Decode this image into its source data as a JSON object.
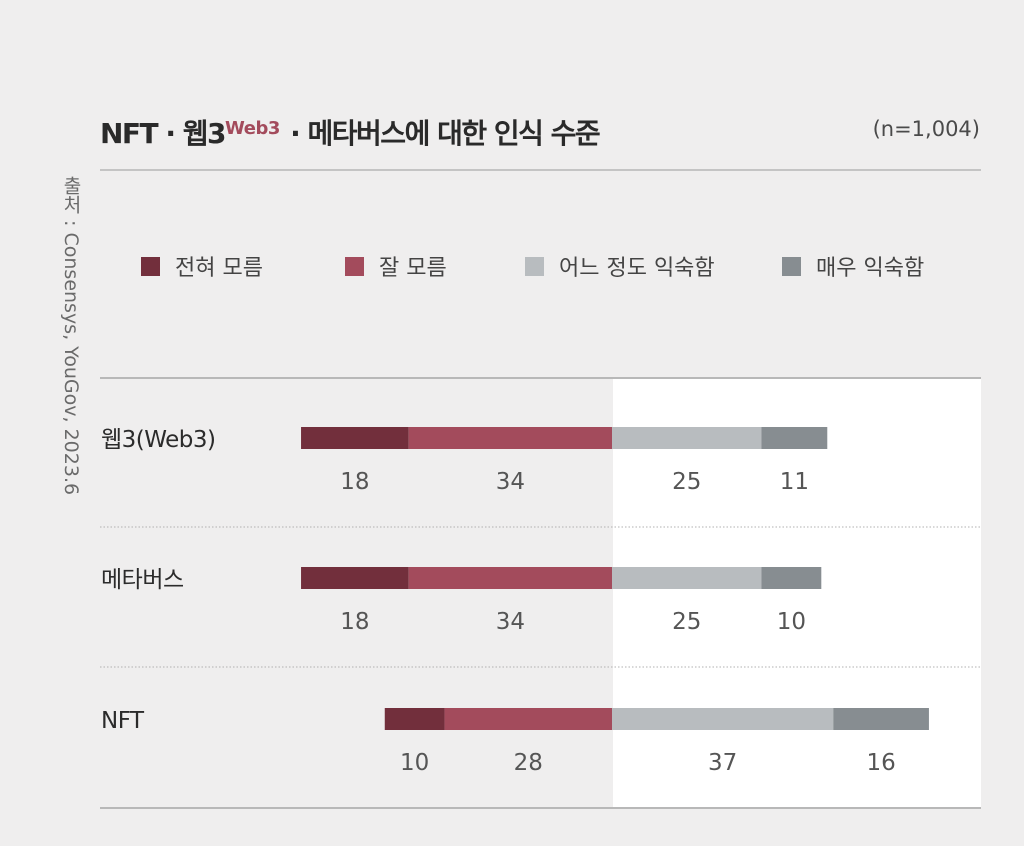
{
  "source": "출처 : Consensys, YouGov, 2023.6",
  "title": {
    "prefix": "NFT · 웹3",
    "superscript": "Web3",
    "suffix": " · 메타버스에 대한 인식 수준"
  },
  "sample_size": "(n=1,004)",
  "colors": {
    "background": "#efeeee",
    "highlight": "#ffffff",
    "divider": "#b8b8b8",
    "dotted": "#b0b0b0"
  },
  "chart_data": {
    "type": "bar",
    "stacked": true,
    "orientation": "horizontal",
    "diverging": true,
    "categories": [
      "웹3(Web3)",
      "메타버스",
      "NFT"
    ],
    "series": [
      {
        "name": "전혀 모름",
        "color": "#722f3c",
        "values": [
          18,
          18,
          10
        ]
      },
      {
        "name": "잘 모름",
        "color": "#a34b5c",
        "values": [
          34,
          34,
          28
        ]
      },
      {
        "name": "어느 정도 익숙함",
        "color": "#b8bcbf",
        "values": [
          25,
          25,
          37
        ]
      },
      {
        "name": "매우 익숙함",
        "color": "#878d91",
        "values": [
          11,
          10,
          16
        ]
      }
    ],
    "legend_position": "top",
    "grid": false
  }
}
